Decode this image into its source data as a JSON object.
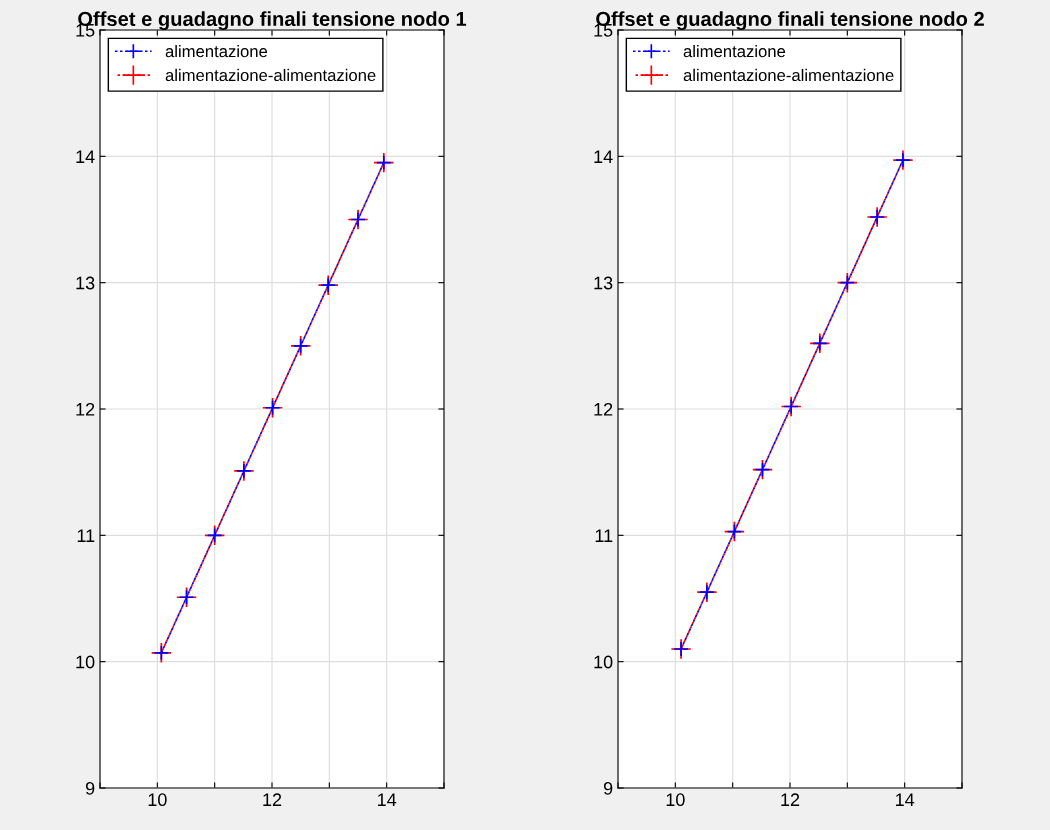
{
  "chart_data": [
    {
      "type": "line",
      "title": "Offset e guadagno finali tensione nodo 1",
      "x": [
        10.07,
        10.51,
        11.0,
        11.51,
        12.01,
        12.5,
        12.98,
        13.5,
        13.95
      ],
      "series": [
        {
          "name": "alimentazione",
          "color": "#0000ff",
          "values": [
            10.07,
            10.51,
            11.0,
            11.51,
            12.01,
            12.5,
            12.98,
            13.5,
            13.95
          ]
        },
        {
          "name": "alimentazione-alimentazione",
          "color": "#ff0000",
          "values": [
            10.07,
            10.51,
            11.0,
            11.51,
            12.01,
            12.5,
            12.98,
            13.5,
            13.95
          ]
        }
      ],
      "xlim": [
        9,
        15
      ],
      "xticks": [
        {
          "value": 9,
          "label": null
        },
        10,
        {
          "value": 11,
          "label": null
        },
        12,
        {
          "value": 13,
          "label": null
        },
        14,
        {
          "value": 15,
          "label": null
        }
      ],
      "ylim": [
        9,
        15
      ],
      "yticks": [
        9,
        10,
        11,
        12,
        13,
        14,
        15
      ],
      "grid": true,
      "legend": "top left",
      "marker": "cross",
      "line_style": "dotted"
    },
    {
      "type": "line",
      "title": "Offset e guadagno finali tensione nodo 2",
      "x": [
        10.1,
        10.55,
        11.03,
        11.52,
        12.02,
        12.52,
        13.0,
        13.52,
        13.97
      ],
      "series": [
        {
          "name": "alimentazione",
          "color": "#0000ff",
          "values": [
            10.1,
            10.55,
            11.03,
            11.52,
            12.02,
            12.52,
            13.0,
            13.52,
            13.97
          ]
        },
        {
          "name": "alimentazione-alimentazione",
          "color": "#ff0000",
          "values": [
            10.1,
            10.55,
            11.03,
            11.52,
            12.02,
            12.52,
            13.0,
            13.52,
            13.97
          ]
        }
      ],
      "xlim": [
        9,
        15
      ],
      "xticks": [
        {
          "value": 9,
          "label": null
        },
        10,
        {
          "value": 11,
          "label": null
        },
        12,
        {
          "value": 13,
          "label": null
        },
        14,
        {
          "value": 15,
          "label": null
        }
      ],
      "ylim": [
        9,
        15
      ],
      "yticks": [
        9,
        10,
        11,
        12,
        13,
        14,
        15
      ],
      "grid": true,
      "legend": "top left",
      "marker": "cross",
      "line_style": "dotted"
    }
  ]
}
